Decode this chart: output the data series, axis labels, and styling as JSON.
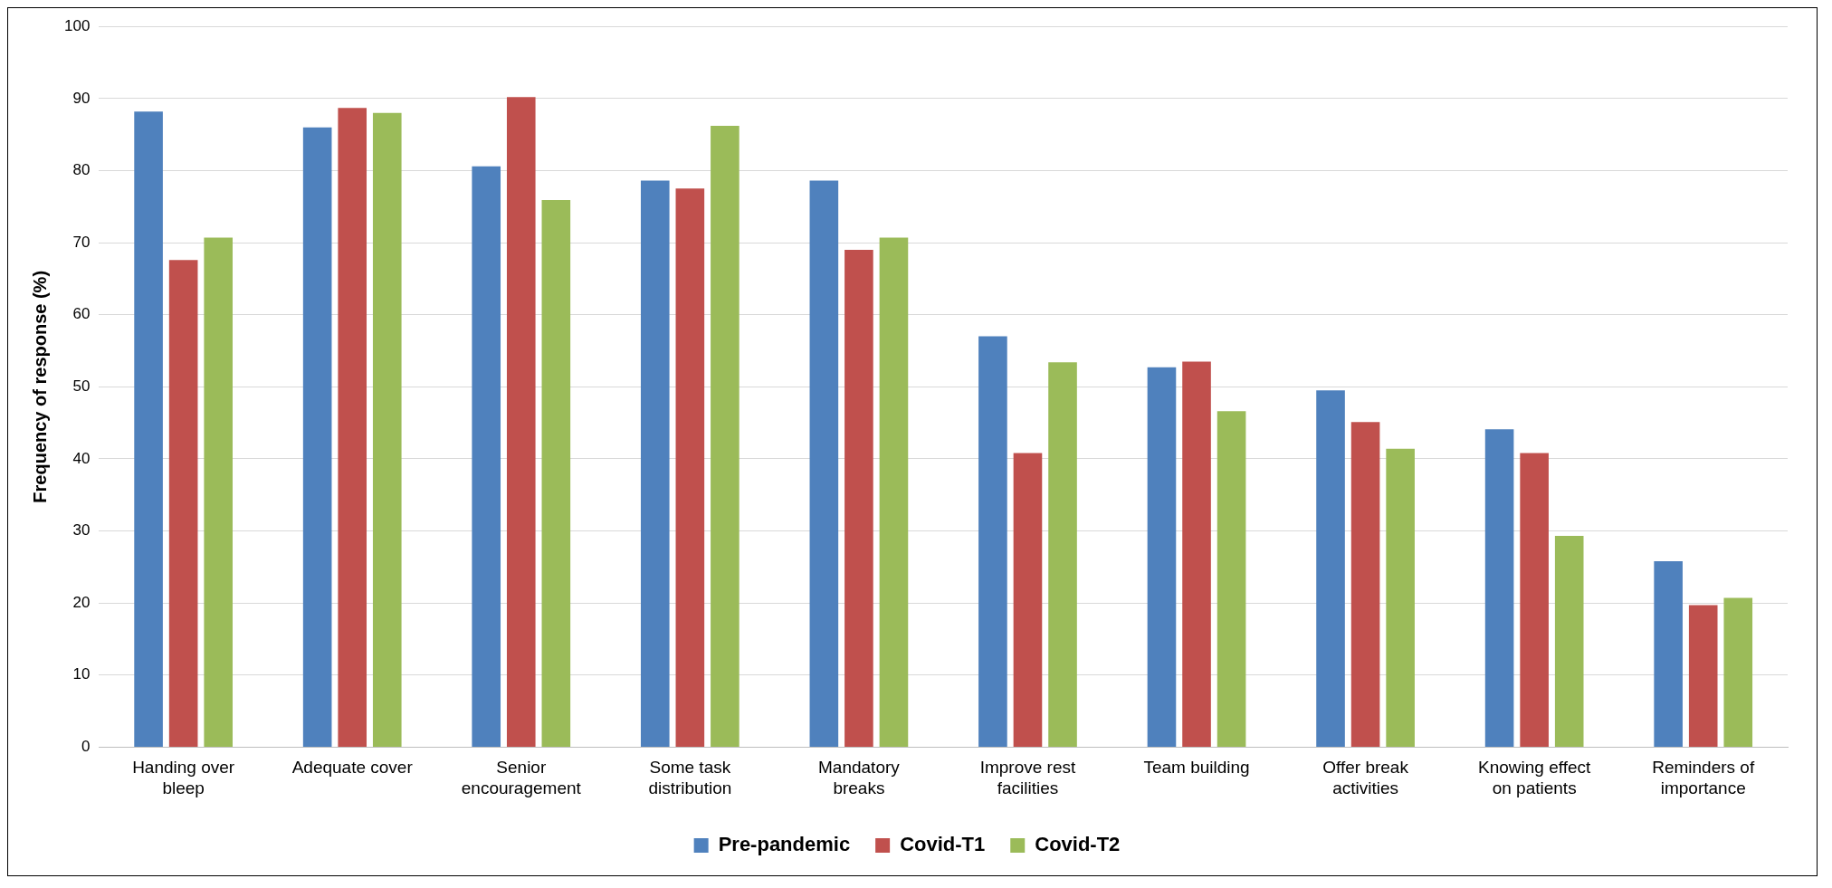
{
  "chart_data": {
    "type": "bar",
    "ylabel": "Frequency of response (%)",
    "categories": [
      "Handing over bleep",
      "Adequate cover",
      "Senior encouragement",
      "Some task distribution",
      "Mandatory breaks",
      "Improve rest facilities",
      "Team building",
      "Offer break activities",
      "Knowing effect on patients",
      "Reminders of importance"
    ],
    "series": [
      {
        "name": "Pre-pandemic",
        "color": "#4f81bd",
        "values": [
          88.2,
          86,
          80.6,
          78.6,
          78.6,
          57,
          52.7,
          49.5,
          44.1,
          25.8
        ]
      },
      {
        "name": "Covid-T1",
        "color": "#c0504d",
        "values": [
          67.6,
          88.7,
          90.2,
          77.5,
          69,
          40.8,
          53.5,
          45.1,
          40.8,
          19.7
        ]
      },
      {
        "name": "Covid-T2",
        "color": "#9bbb59",
        "values": [
          70.7,
          88,
          75.9,
          86.2,
          70.7,
          53.4,
          46.6,
          41.4,
          29.3,
          20.7
        ]
      }
    ],
    "ylim": [
      0,
      100
    ],
    "yticks": [
      0,
      10,
      20,
      30,
      40,
      50,
      60,
      70,
      80,
      90,
      100
    ],
    "grid": "y",
    "legend": "bottom"
  }
}
